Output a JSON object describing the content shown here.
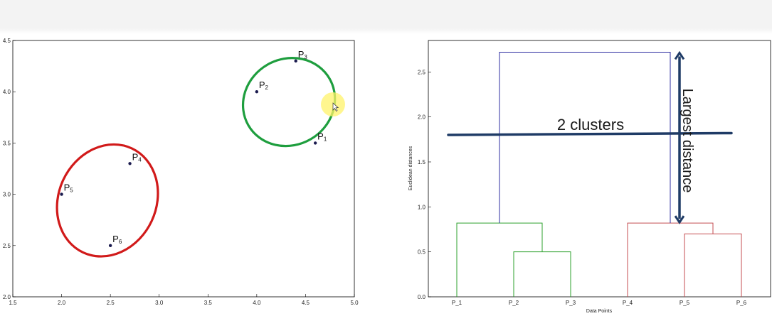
{
  "chart_data": [
    {
      "type": "scatter",
      "xlim": [
        1.5,
        5.0
      ],
      "ylim": [
        2.0,
        4.5
      ],
      "x_ticks": [
        "1.5",
        "2.0",
        "2.5",
        "3.0",
        "3.5",
        "4.0",
        "4.5",
        "5.0"
      ],
      "y_ticks": [
        "2.0",
        "2.5",
        "3.0",
        "3.5",
        "4.0",
        "4.5"
      ],
      "grid": false,
      "points": [
        {
          "label": "P",
          "sub": "1",
          "x": 4.6,
          "y": 3.5
        },
        {
          "label": "P",
          "sub": "2",
          "x": 4.0,
          "y": 4.0
        },
        {
          "label": "P",
          "sub": "3",
          "x": 4.4,
          "y": 4.3
        },
        {
          "label": "P",
          "sub": "4",
          "x": 2.7,
          "y": 3.3
        },
        {
          "label": "P",
          "sub": "5",
          "x": 2.0,
          "y": 3.0
        },
        {
          "label": "P",
          "sub": "6",
          "x": 2.5,
          "y": 2.5
        }
      ],
      "point_color": "#1a1a4e",
      "clusters": [
        {
          "color": "#1e9e3e",
          "members": [
            "P1",
            "P2",
            "P3"
          ],
          "cx": 4.33,
          "cy": 3.9,
          "rx": 0.48,
          "ry": 0.42,
          "rotation": -30
        },
        {
          "color": "#d11a1a",
          "members": [
            "P4",
            "P5",
            "P6"
          ],
          "cx": 2.47,
          "cy": 2.94,
          "rx": 0.5,
          "ry": 0.56,
          "rotation": 25
        }
      ]
    },
    {
      "type": "dendrogram",
      "xlabel": "Data Points",
      "ylabel": "Euclidean distances",
      "leaves": [
        "P_1",
        "P_2",
        "P_3",
        "P_4",
        "P_5",
        "P_6"
      ],
      "ylim": [
        0.0,
        2.85
      ],
      "y_ticks": [
        "0.0",
        "0.5",
        "1.0",
        "1.5",
        "2.0",
        "2.5"
      ],
      "links": [
        {
          "left": 1,
          "right": 2,
          "height": 0.5,
          "color": "#2ca02c"
        },
        {
          "left": 0,
          "right": "c1",
          "height": 0.82,
          "color": "#2ca02c"
        },
        {
          "left": 4,
          "right": 5,
          "height": 0.7,
          "color": "#c44e52"
        },
        {
          "left": 3,
          "right": "c3",
          "height": 0.82,
          "color": "#c44e52"
        },
        {
          "left": "c2",
          "right": "c4",
          "height": 2.72,
          "color": "#2c2ca0"
        }
      ],
      "cut_line": {
        "y_start": 1.8,
        "y_end": 1.82,
        "color": "#1f3b66"
      },
      "cut_label": "2 clusters",
      "arrow_label": "Largest distance",
      "arrow_range": [
        0.82,
        2.72
      ]
    }
  ]
}
